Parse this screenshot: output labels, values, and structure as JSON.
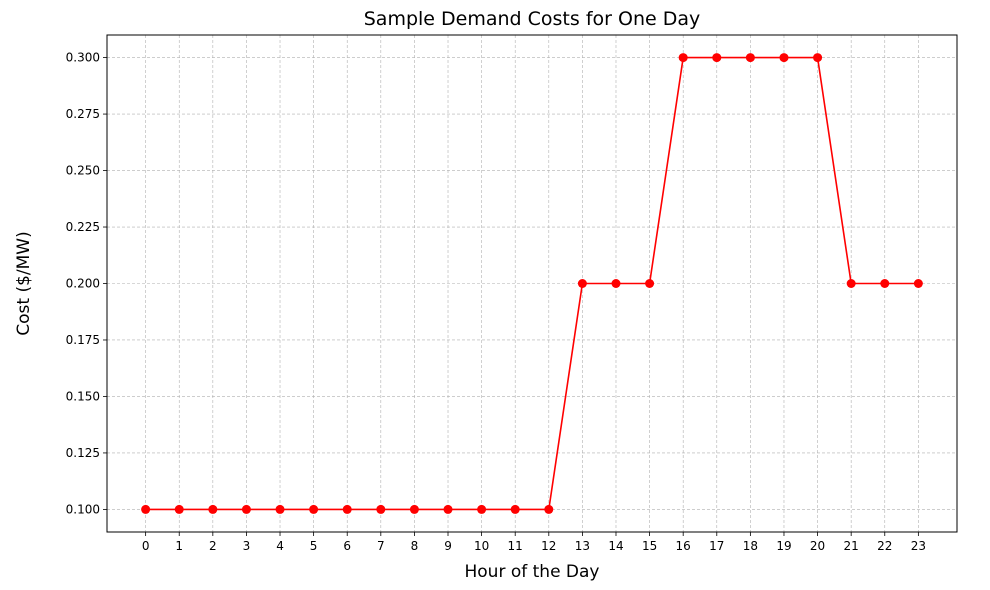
{
  "chart_data": {
    "type": "line",
    "title": "Sample Demand Costs for One Day",
    "xlabel": "Hour of the Day",
    "ylabel": "Cost ($/MW)",
    "x": [
      0,
      1,
      2,
      3,
      4,
      5,
      6,
      7,
      8,
      9,
      10,
      11,
      12,
      13,
      14,
      15,
      16,
      17,
      18,
      19,
      20,
      21,
      22,
      23
    ],
    "x_tick_labels": [
      "0",
      "1",
      "2",
      "3",
      "4",
      "5",
      "6",
      "7",
      "8",
      "9",
      "10",
      "11",
      "12",
      "13",
      "14",
      "15",
      "16",
      "17",
      "18",
      "19",
      "20",
      "21",
      "22",
      "23"
    ],
    "y_tick_labels": [
      "0.100",
      "0.125",
      "0.150",
      "0.175",
      "0.200",
      "0.225",
      "0.250",
      "0.275",
      "0.300"
    ],
    "y_ticks": [
      0.1,
      0.125,
      0.15,
      0.175,
      0.2,
      0.225,
      0.25,
      0.275,
      0.3
    ],
    "series": [
      {
        "values": [
          0.1,
          0.1,
          0.1,
          0.1,
          0.1,
          0.1,
          0.1,
          0.1,
          0.1,
          0.1,
          0.1,
          0.1,
          0.1,
          0.2,
          0.2,
          0.2,
          0.3,
          0.3,
          0.3,
          0.3,
          0.3,
          0.2,
          0.2,
          0.2
        ],
        "color": "#ff0000",
        "marker": "circle"
      }
    ],
    "xlim": [
      -1.15,
      24.15
    ],
    "ylim": [
      0.09,
      0.31
    ],
    "grid": true,
    "grid_style": "dashed",
    "grid_color": "#b0b0b0"
  }
}
